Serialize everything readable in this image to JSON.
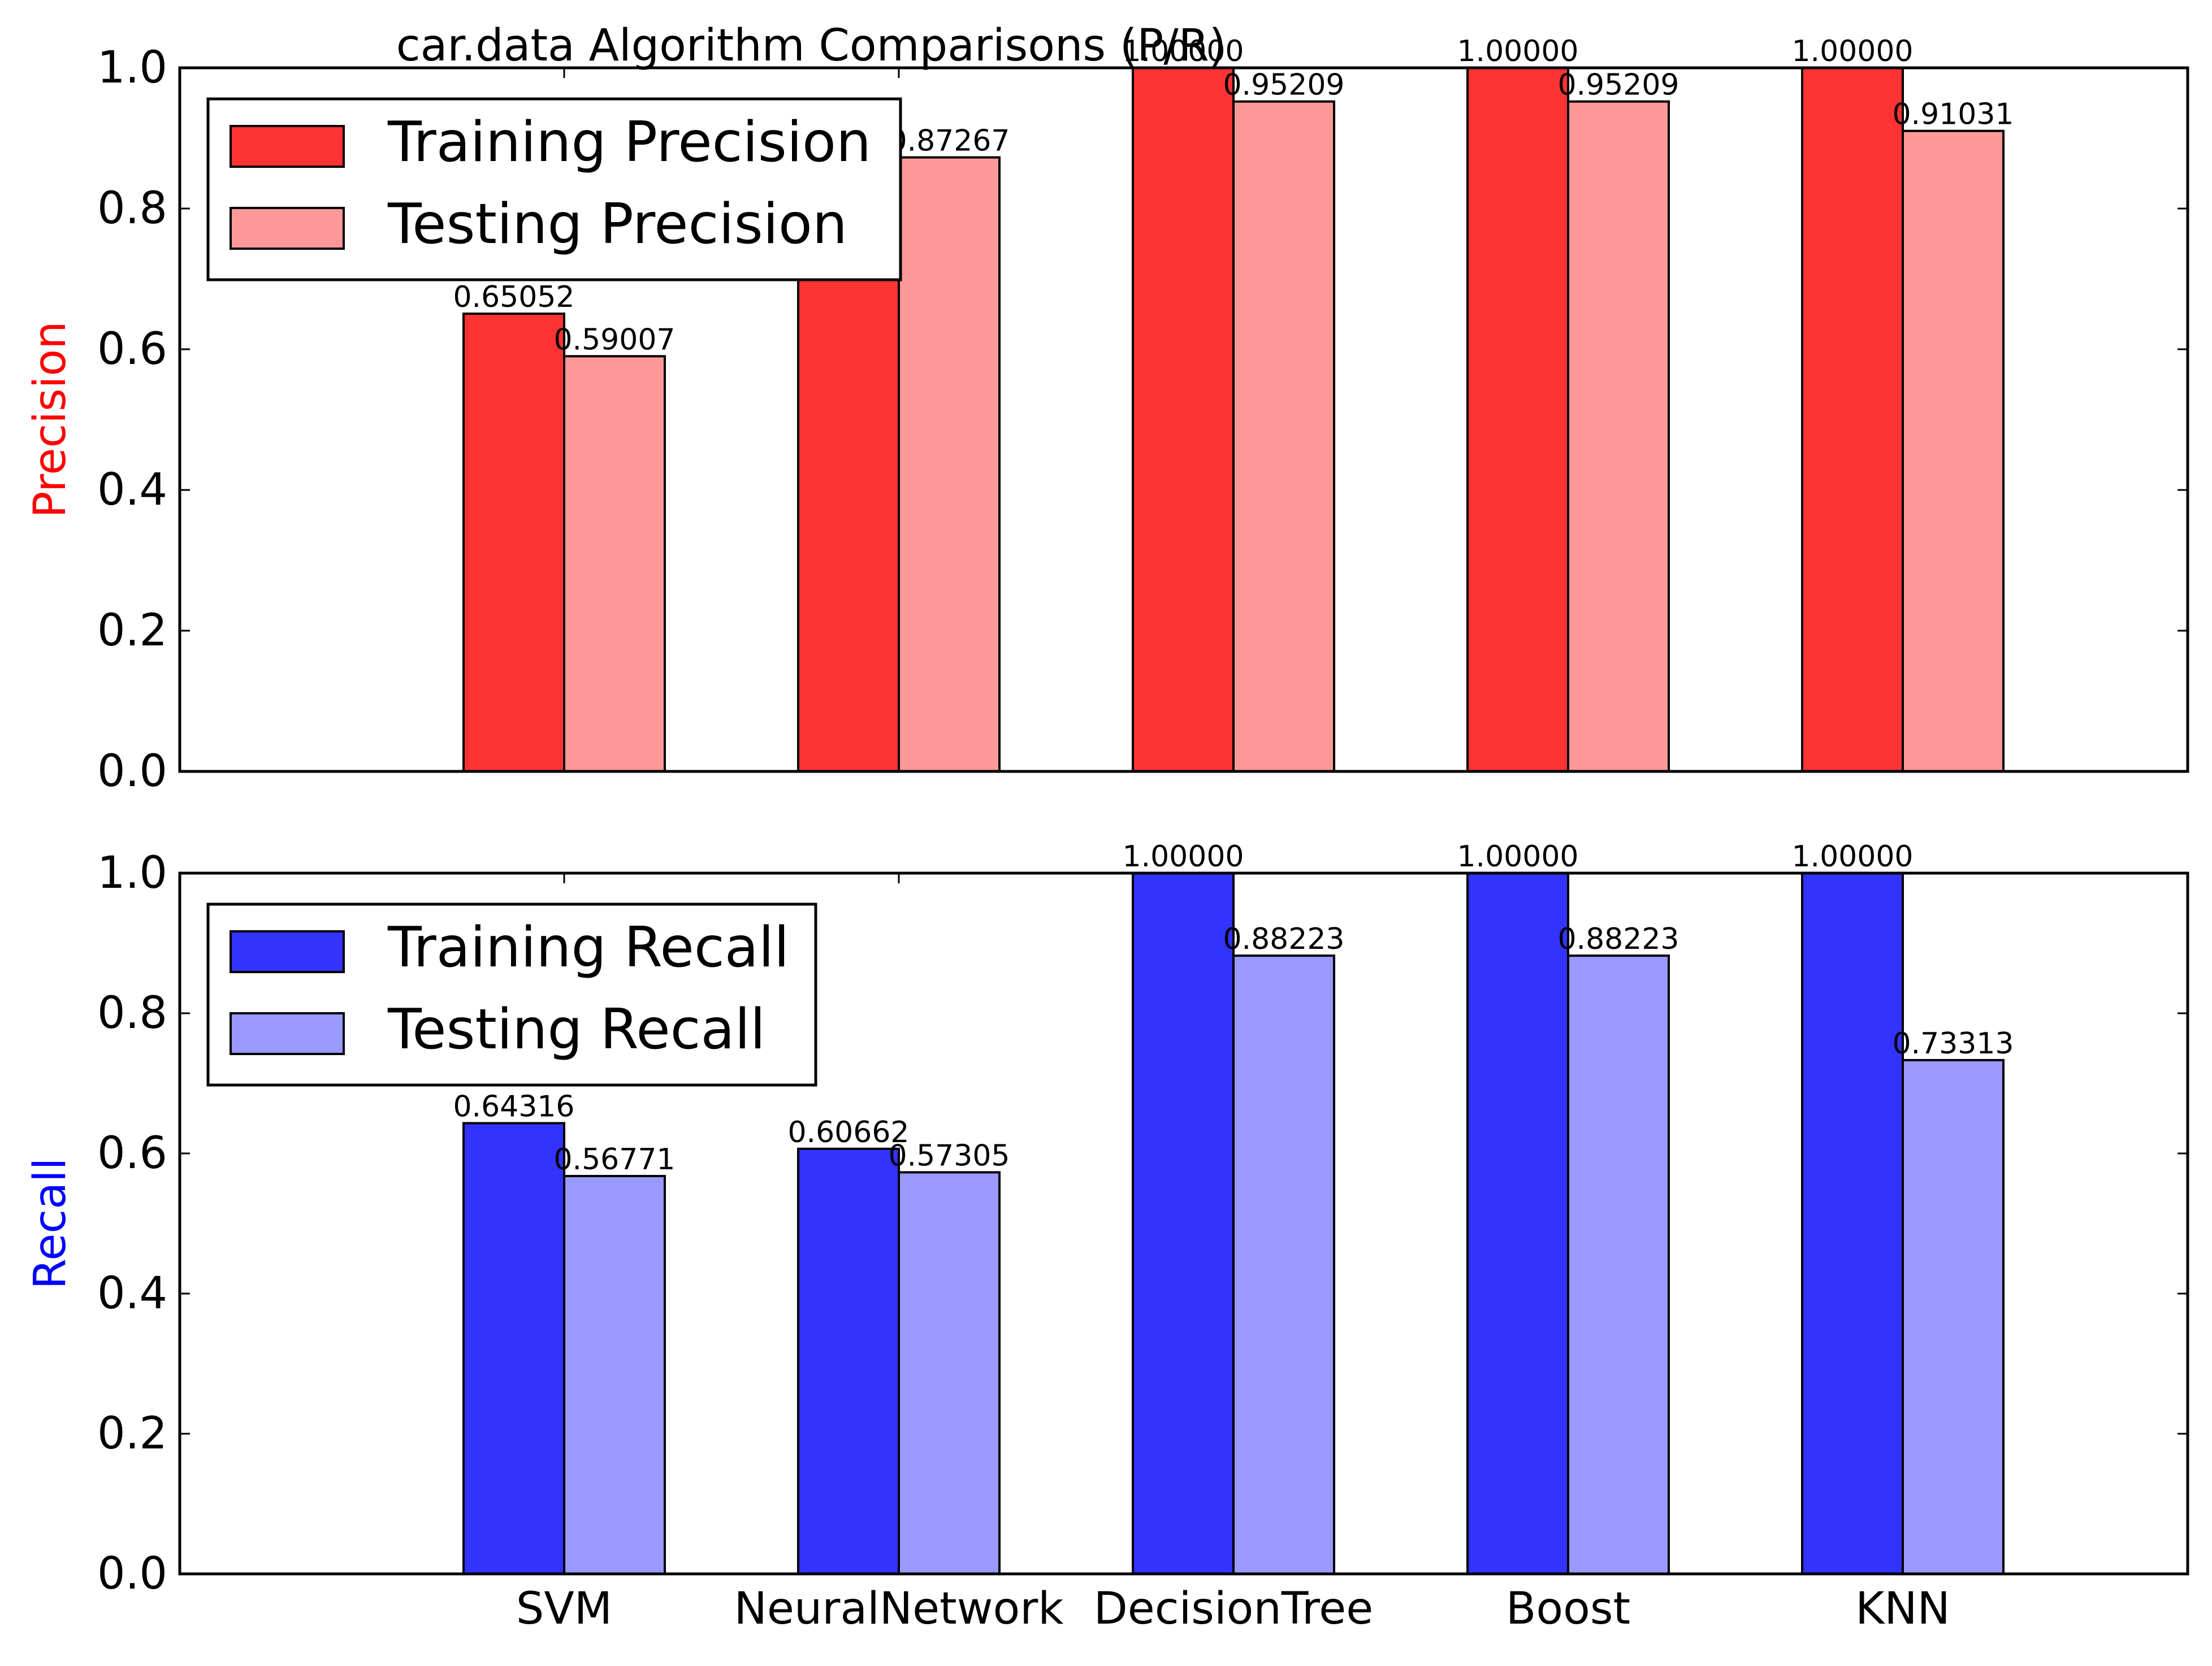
{
  "title": "car.data Algorithm Comparisons (P/R)",
  "chart_data": [
    {
      "type": "bar",
      "ylabel": "Precision",
      "ylim": [
        0,
        1.0
      ],
      "yticks": [
        "0.0",
        "0.2",
        "0.4",
        "0.6",
        "0.8",
        "1.0"
      ],
      "categories": [
        "SVM",
        "NeuralNetwork",
        "DecisionTree",
        "Boost",
        "KNN"
      ],
      "series": [
        {
          "name": "Training Precision",
          "color": "#ff3333",
          "values": [
            0.65052,
            0.7,
            1.0,
            1.0,
            1.0
          ],
          "labels": [
            "0.65052",
            "0.70000",
            "1.00000",
            "1.00000",
            "1.00000"
          ]
        },
        {
          "name": "Testing Precision",
          "color": "#ff9999",
          "values": [
            0.59007,
            0.87267,
            0.95209,
            0.95209,
            0.91031
          ],
          "labels": [
            "0.59007",
            "0.87267",
            "0.95209",
            "0.95209",
            "0.91031"
          ]
        }
      ],
      "legend_loc": "upper-left",
      "ylabel_color": "#ff0000"
    },
    {
      "type": "bar",
      "ylabel": "Recall",
      "ylim": [
        0,
        1.0
      ],
      "yticks": [
        "0.0",
        "0.2",
        "0.4",
        "0.6",
        "0.8",
        "1.0"
      ],
      "categories": [
        "SVM",
        "NeuralNetwork",
        "DecisionTree",
        "Boost",
        "KNN"
      ],
      "series": [
        {
          "name": "Training Recall",
          "color": "#3333ff",
          "values": [
            0.64316,
            0.60662,
            1.0,
            1.0,
            1.0
          ],
          "labels": [
            "0.64316",
            "0.60662",
            "1.00000",
            "1.00000",
            "1.00000"
          ]
        },
        {
          "name": "Testing Recall",
          "color": "#9999ff",
          "values": [
            0.56771,
            0.57305,
            0.88223,
            0.88223,
            0.73313
          ],
          "labels": [
            "0.56771",
            "0.57305",
            "0.88223",
            "0.88223",
            "0.73313"
          ]
        }
      ],
      "legend_loc": "upper-left",
      "ylabel_color": "#0000ff"
    }
  ]
}
